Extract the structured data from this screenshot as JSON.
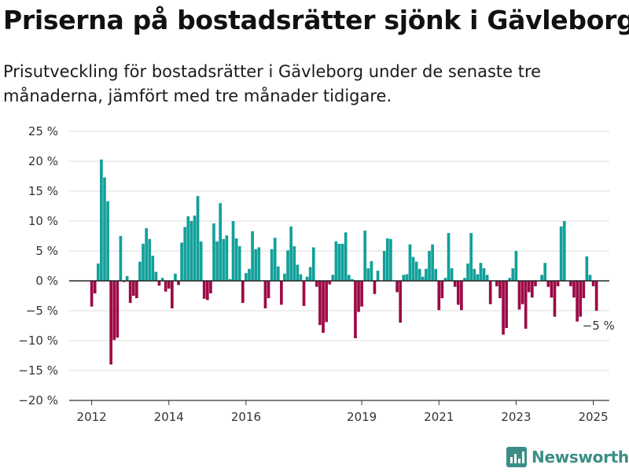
{
  "header": {
    "title": "Priserna på bostadsrätter sjönk i Gävleborg",
    "subtitle": "Prisutveckling för bostadsrätter i Gävleborg under de senaste tre månaderna, jämfört med tre månader tidigare."
  },
  "brand": {
    "name": "Newsworthy",
    "color": "#3b8e86",
    "icon": "bar-chart-logo-icon"
  },
  "colors": {
    "positive": "#12a09a",
    "negative": "#9b0a46",
    "grid": "#dddddd",
    "axis": "#333333"
  },
  "chart_data": {
    "type": "bar",
    "title": "Priserna på bostadsrätter sjönk i Gävleborg",
    "subtitle": "Prisutveckling för bostadsrätter i Gävleborg under de senaste tre månaderna, jämfört med tre månader tidigare.",
    "xlabel": "",
    "ylabel": "",
    "x_start": "2012-01",
    "x_interval": "month",
    "xlim": [
      "2011-06",
      "2025-06"
    ],
    "ylim": [
      -20,
      25
    ],
    "y_ticks": [
      25,
      20,
      15,
      10,
      5,
      0,
      -5,
      -10,
      -15,
      -20
    ],
    "y_tick_labels": [
      "25 %",
      "20 %",
      "15 %",
      "10 %",
      "5 %",
      "0 %",
      "−5 %",
      "−10 %",
      "−15 %",
      "−20 %"
    ],
    "x_ticks": [
      "2012-01",
      "2014-01",
      "2016-01",
      "2019-01",
      "2021-01",
      "2023-01",
      "2025-01"
    ],
    "x_tick_labels": [
      "2012",
      "2014",
      "2016",
      "2019",
      "2021",
      "2023",
      "2025"
    ],
    "grid": "horizontal",
    "annotation": {
      "label": "−5 %",
      "at": "2025-01"
    },
    "values": [
      -4.3,
      -2.1,
      2.9,
      20.3,
      17.3,
      13.3,
      -14.0,
      -9.9,
      -9.5,
      7.5,
      -0.2,
      0.8,
      -3.7,
      -2.5,
      -2.9,
      3.2,
      6.2,
      8.8,
      7.0,
      4.2,
      1.5,
      -0.8,
      0.5,
      -1.8,
      -1.3,
      -4.6,
      1.2,
      -0.7,
      6.4,
      9.0,
      10.8,
      10.0,
      10.9,
      14.2,
      6.6,
      -3.0,
      -3.2,
      -2.1,
      9.6,
      6.6,
      13.0,
      7.0,
      7.6,
      0.3,
      10.0,
      7.1,
      5.8,
      -3.7,
      1.3,
      2.0,
      8.3,
      5.3,
      5.6,
      0.0,
      -4.6,
      -2.9,
      5.3,
      7.2,
      2.4,
      -4.0,
      1.2,
      5.1,
      9.1,
      5.8,
      2.7,
      1.1,
      -4.2,
      0.7,
      2.3,
      5.6,
      -1.0,
      -7.4,
      -8.7,
      -6.9,
      -0.6,
      1.0,
      6.6,
      6.2,
      6.2,
      8.1,
      1.0,
      0.3,
      -9.6,
      -5.2,
      -4.3,
      8.4,
      2.1,
      3.3,
      -2.2,
      1.7,
      0.0,
      5.0,
      7.1,
      7.0,
      0.0,
      -1.9,
      -7.0,
      1.0,
      1.1,
      6.1,
      4.0,
      3.2,
      2.0,
      0.7,
      2.0,
      5.0,
      6.1,
      2.0,
      -4.9,
      -2.9,
      0.5,
      8.0,
      2.1,
      -1.0,
      -4.0,
      -4.9,
      0.5,
      2.9,
      8.0,
      2.0,
      1.1,
      3.0,
      2.1,
      1.0,
      -3.9,
      0.0,
      -0.9,
      -2.9,
      -9.0,
      -7.9,
      0.5,
      2.1,
      5.0,
      -4.8,
      -3.9,
      -8.0,
      -1.9,
      -2.8,
      -0.9,
      0.0,
      1.0,
      3.0,
      -1.0,
      -2.8,
      -6.0,
      -0.9,
      9.1,
      10.0,
      0.0,
      -0.9,
      -2.8,
      -6.8,
      -6.0,
      -2.9,
      4.1,
      1.0,
      -0.9,
      -5.0
    ]
  }
}
